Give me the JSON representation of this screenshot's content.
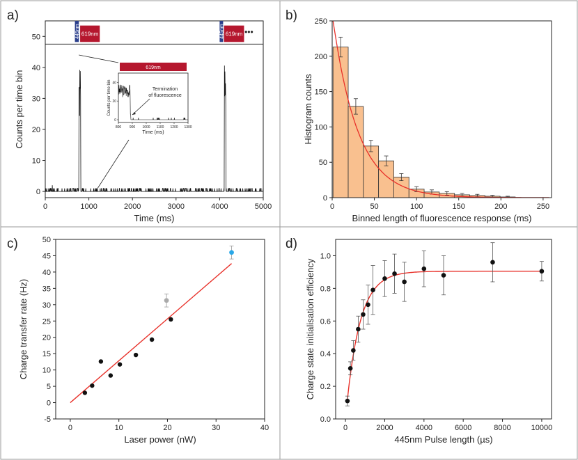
{
  "chart_data": [
    {
      "panel_label": "a)",
      "type": "line",
      "xlabel": "Time (ms)",
      "ylabel": "Counts per time bin",
      "xlim": [
        0,
        5000
      ],
      "ylim": [
        -2,
        55
      ],
      "xticks": [
        0,
        1000,
        2000,
        3000,
        4000,
        5000
      ],
      "yticks": [
        0,
        10,
        20,
        30,
        40,
        50
      ],
      "pulse_labels": [
        "445nm",
        "619nm",
        "445nm",
        "619nm"
      ],
      "ellipsis": "•••",
      "bursts": [
        {
          "start": 770,
          "end": 810,
          "peak": 44
        },
        {
          "start": 4110,
          "end": 4140,
          "peak": 42
        }
      ],
      "inset": {
        "bar_label": "619nm",
        "xlabel": "Time (ms)",
        "ylabel": "Counts per time bin",
        "annotation": "Termination\nof fluorescence",
        "xticks": [
          800,
          900,
          1000,
          1100,
          1200,
          1300
        ],
        "yticks": [
          0,
          20,
          40
        ]
      }
    },
    {
      "panel_label": "b)",
      "type": "bar",
      "xlabel": "Binned length of fluorescence response (ms)",
      "ylabel": "Histogram counts",
      "xlim": [
        0,
        260
      ],
      "ylim": [
        0,
        250
      ],
      "xticks": [
        0,
        50,
        100,
        150,
        200,
        250
      ],
      "yticks": [
        0,
        50,
        100,
        150,
        200,
        250
      ],
      "bin_width": 18,
      "bin_centers": [
        10,
        28,
        46,
        64,
        82,
        100,
        118,
        136,
        154,
        172,
        190,
        208
      ],
      "values": [
        213,
        129,
        73,
        52,
        29,
        12,
        8,
        6,
        4,
        3,
        2,
        1
      ],
      "errors": [
        14,
        11,
        8,
        7,
        5,
        3.5,
        3,
        2.5,
        2,
        1.7,
        1.4,
        1
      ],
      "fit": {
        "A": 260,
        "tau": 30
      }
    },
    {
      "panel_label": "c)",
      "type": "scatter",
      "xlabel": "Laser power (nW)",
      "ylabel": "Charge transfer rate (Hz)",
      "xlim": [
        -3,
        40
      ],
      "ylim": [
        -5,
        50
      ],
      "xticks": [
        0,
        10,
        20,
        30,
        40
      ],
      "yticks": [
        -5,
        0,
        5,
        10,
        15,
        20,
        25,
        30,
        35,
        40,
        45,
        50
      ],
      "points": [
        {
          "x": 3,
          "y": 3
        },
        {
          "x": 4.5,
          "y": 5.2
        },
        {
          "x": 6.3,
          "y": 12.6
        },
        {
          "x": 8.3,
          "y": 8.3
        },
        {
          "x": 10.2,
          "y": 11.7
        },
        {
          "x": 13.5,
          "y": 14.6
        },
        {
          "x": 16.8,
          "y": 19.3
        },
        {
          "x": 20.7,
          "y": 25.5
        }
      ],
      "extra_points": [
        {
          "x": 19.8,
          "y": 31.3,
          "err": 2,
          "color": "#aaaaaa"
        },
        {
          "x": 33.2,
          "y": 46,
          "err": 2,
          "color": "#2aa8e8"
        }
      ],
      "fit_line": {
        "x": [
          0,
          33.2
        ],
        "y": [
          0,
          42.6
        ]
      }
    },
    {
      "panel_label": "d)",
      "type": "scatter",
      "xlabel": "445nm Pulse length (µs)",
      "ylabel": "Charge state initialisation efficiency",
      "xlim": [
        -500,
        10500
      ],
      "ylim": [
        0,
        1.1
      ],
      "xticks": [
        0,
        2000,
        4000,
        6000,
        8000,
        10000
      ],
      "yticks": [
        0.0,
        0.2,
        0.4,
        0.6,
        0.8,
        1.0
      ],
      "points": [
        {
          "x": 100,
          "y": 0.11,
          "err": 0.03
        },
        {
          "x": 250,
          "y": 0.31,
          "err": 0.04
        },
        {
          "x": 400,
          "y": 0.42,
          "err": 0.06
        },
        {
          "x": 650,
          "y": 0.55,
          "err": 0.08
        },
        {
          "x": 900,
          "y": 0.64,
          "err": 0.09
        },
        {
          "x": 1150,
          "y": 0.7,
          "err": 0.12
        },
        {
          "x": 1400,
          "y": 0.79,
          "err": 0.15
        },
        {
          "x": 2000,
          "y": 0.86,
          "err": 0.11
        },
        {
          "x": 2500,
          "y": 0.89,
          "err": 0.12
        },
        {
          "x": 3000,
          "y": 0.84,
          "err": 0.12
        },
        {
          "x": 4000,
          "y": 0.92,
          "err": 0.11
        },
        {
          "x": 5000,
          "y": 0.88,
          "err": 0.12
        },
        {
          "x": 7500,
          "y": 0.96,
          "err": 0.12
        },
        {
          "x": 10000,
          "y": 0.905,
          "err": 0.06
        }
      ],
      "fit": {
        "A": 0.905,
        "tau": 700,
        "x0": 0
      }
    }
  ]
}
